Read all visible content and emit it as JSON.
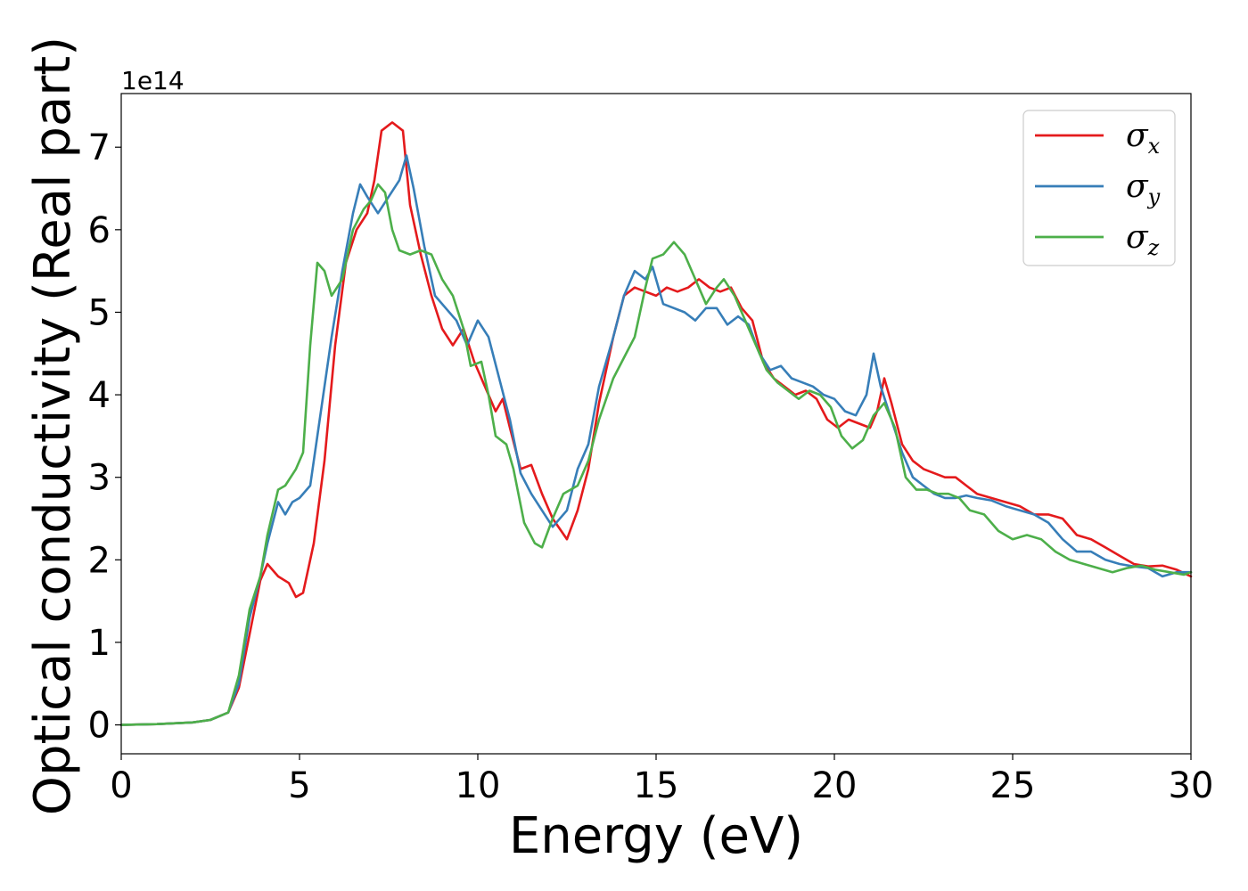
{
  "chart_data": {
    "type": "line",
    "title": "",
    "xlabel": "Energy (eV)",
    "ylabel": "Optical conductivity (Real part)",
    "y_offset_label": "1e14",
    "xlim": [
      0,
      30
    ],
    "ylim": [
      -0.35,
      7.65
    ],
    "x_ticks": [
      0,
      5,
      10,
      15,
      20,
      25,
      30
    ],
    "y_ticks": [
      0,
      1,
      2,
      3,
      4,
      5,
      6,
      7
    ],
    "grid": false,
    "legend_position": "top-right",
    "series": [
      {
        "name": "σx",
        "symbol": "σ",
        "subscript": "x",
        "color": "#e41a1c",
        "points": [
          [
            0,
            0
          ],
          [
            1,
            0.01
          ],
          [
            2,
            0.03
          ],
          [
            2.5,
            0.06
          ],
          [
            3,
            0.15
          ],
          [
            3.3,
            0.45
          ],
          [
            3.6,
            1.1
          ],
          [
            3.9,
            1.75
          ],
          [
            4.1,
            1.95
          ],
          [
            4.4,
            1.8
          ],
          [
            4.7,
            1.72
          ],
          [
            4.9,
            1.55
          ],
          [
            5.1,
            1.6
          ],
          [
            5.4,
            2.2
          ],
          [
            5.7,
            3.2
          ],
          [
            6.0,
            4.6
          ],
          [
            6.3,
            5.6
          ],
          [
            6.6,
            6.0
          ],
          [
            6.9,
            6.2
          ],
          [
            7.1,
            6.6
          ],
          [
            7.3,
            7.2
          ],
          [
            7.6,
            7.3
          ],
          [
            7.9,
            7.2
          ],
          [
            8.1,
            6.3
          ],
          [
            8.4,
            5.7
          ],
          [
            8.7,
            5.2
          ],
          [
            9.0,
            4.8
          ],
          [
            9.3,
            4.6
          ],
          [
            9.6,
            4.8
          ],
          [
            9.9,
            4.4
          ],
          [
            10.2,
            4.1
          ],
          [
            10.5,
            3.8
          ],
          [
            10.7,
            3.95
          ],
          [
            10.9,
            3.6
          ],
          [
            11.2,
            3.1
          ],
          [
            11.5,
            3.15
          ],
          [
            11.8,
            2.8
          ],
          [
            12.1,
            2.5
          ],
          [
            12.5,
            2.25
          ],
          [
            12.8,
            2.6
          ],
          [
            13.1,
            3.1
          ],
          [
            13.4,
            3.9
          ],
          [
            13.8,
            4.7
          ],
          [
            14.1,
            5.2
          ],
          [
            14.4,
            5.3
          ],
          [
            14.7,
            5.25
          ],
          [
            15.0,
            5.2
          ],
          [
            15.3,
            5.3
          ],
          [
            15.6,
            5.25
          ],
          [
            15.9,
            5.3
          ],
          [
            16.2,
            5.4
          ],
          [
            16.5,
            5.3
          ],
          [
            16.8,
            5.25
          ],
          [
            17.1,
            5.3
          ],
          [
            17.4,
            5.05
          ],
          [
            17.7,
            4.9
          ],
          [
            18.0,
            4.4
          ],
          [
            18.3,
            4.2
          ],
          [
            18.6,
            4.1
          ],
          [
            18.9,
            4.0
          ],
          [
            19.2,
            4.05
          ],
          [
            19.5,
            3.95
          ],
          [
            19.8,
            3.7
          ],
          [
            20.1,
            3.6
          ],
          [
            20.4,
            3.7
          ],
          [
            20.7,
            3.65
          ],
          [
            21.0,
            3.6
          ],
          [
            21.2,
            3.8
          ],
          [
            21.4,
            4.2
          ],
          [
            21.6,
            3.9
          ],
          [
            21.9,
            3.4
          ],
          [
            22.2,
            3.2
          ],
          [
            22.5,
            3.1
          ],
          [
            22.8,
            3.05
          ],
          [
            23.1,
            3.0
          ],
          [
            23.4,
            3.0
          ],
          [
            23.7,
            2.9
          ],
          [
            24.0,
            2.8
          ],
          [
            24.4,
            2.75
          ],
          [
            24.8,
            2.7
          ],
          [
            25.2,
            2.65
          ],
          [
            25.6,
            2.55
          ],
          [
            26.0,
            2.55
          ],
          [
            26.4,
            2.5
          ],
          [
            26.8,
            2.3
          ],
          [
            27.2,
            2.25
          ],
          [
            27.6,
            2.15
          ],
          [
            28.0,
            2.05
          ],
          [
            28.4,
            1.95
          ],
          [
            28.8,
            1.92
          ],
          [
            29.2,
            1.93
          ],
          [
            29.6,
            1.88
          ],
          [
            30.0,
            1.8
          ]
        ]
      },
      {
        "name": "σy",
        "symbol": "σ",
        "subscript": "y",
        "color": "#377eb8",
        "points": [
          [
            0,
            0
          ],
          [
            1,
            0.01
          ],
          [
            2,
            0.03
          ],
          [
            2.5,
            0.06
          ],
          [
            3,
            0.15
          ],
          [
            3.3,
            0.5
          ],
          [
            3.6,
            1.3
          ],
          [
            3.9,
            1.8
          ],
          [
            4.1,
            2.2
          ],
          [
            4.4,
            2.7
          ],
          [
            4.6,
            2.55
          ],
          [
            4.8,
            2.7
          ],
          [
            5.0,
            2.75
          ],
          [
            5.3,
            2.9
          ],
          [
            5.6,
            3.8
          ],
          [
            5.9,
            4.7
          ],
          [
            6.2,
            5.5
          ],
          [
            6.5,
            6.2
          ],
          [
            6.7,
            6.55
          ],
          [
            6.9,
            6.4
          ],
          [
            7.2,
            6.2
          ],
          [
            7.5,
            6.4
          ],
          [
            7.8,
            6.6
          ],
          [
            8.0,
            6.9
          ],
          [
            8.2,
            6.5
          ],
          [
            8.5,
            5.8
          ],
          [
            8.8,
            5.2
          ],
          [
            9.1,
            5.05
          ],
          [
            9.4,
            4.9
          ],
          [
            9.7,
            4.6
          ],
          [
            10.0,
            4.9
          ],
          [
            10.3,
            4.7
          ],
          [
            10.6,
            4.2
          ],
          [
            10.9,
            3.7
          ],
          [
            11.2,
            3.05
          ],
          [
            11.5,
            2.8
          ],
          [
            11.8,
            2.6
          ],
          [
            12.1,
            2.4
          ],
          [
            12.5,
            2.6
          ],
          [
            12.8,
            3.1
          ],
          [
            13.1,
            3.4
          ],
          [
            13.4,
            4.1
          ],
          [
            13.8,
            4.7
          ],
          [
            14.1,
            5.2
          ],
          [
            14.4,
            5.5
          ],
          [
            14.7,
            5.4
          ],
          [
            14.9,
            5.55
          ],
          [
            15.2,
            5.1
          ],
          [
            15.5,
            5.05
          ],
          [
            15.8,
            5.0
          ],
          [
            16.1,
            4.9
          ],
          [
            16.4,
            5.05
          ],
          [
            16.7,
            5.05
          ],
          [
            17.0,
            4.85
          ],
          [
            17.3,
            4.95
          ],
          [
            17.6,
            4.85
          ],
          [
            17.9,
            4.5
          ],
          [
            18.2,
            4.3
          ],
          [
            18.5,
            4.35
          ],
          [
            18.8,
            4.2
          ],
          [
            19.1,
            4.15
          ],
          [
            19.4,
            4.1
          ],
          [
            19.7,
            4.0
          ],
          [
            20.0,
            3.95
          ],
          [
            20.3,
            3.8
          ],
          [
            20.6,
            3.75
          ],
          [
            20.9,
            4.0
          ],
          [
            21.1,
            4.5
          ],
          [
            21.3,
            4.1
          ],
          [
            21.6,
            3.7
          ],
          [
            21.9,
            3.3
          ],
          [
            22.2,
            3.0
          ],
          [
            22.5,
            2.9
          ],
          [
            22.8,
            2.8
          ],
          [
            23.1,
            2.75
          ],
          [
            23.4,
            2.75
          ],
          [
            23.7,
            2.78
          ],
          [
            24.0,
            2.75
          ],
          [
            24.4,
            2.72
          ],
          [
            24.8,
            2.65
          ],
          [
            25.2,
            2.6
          ],
          [
            25.6,
            2.55
          ],
          [
            26.0,
            2.45
          ],
          [
            26.4,
            2.25
          ],
          [
            26.8,
            2.1
          ],
          [
            27.2,
            2.1
          ],
          [
            27.6,
            2.0
          ],
          [
            28.0,
            1.95
          ],
          [
            28.4,
            1.92
          ],
          [
            28.8,
            1.9
          ],
          [
            29.2,
            1.8
          ],
          [
            29.6,
            1.85
          ],
          [
            30.0,
            1.85
          ]
        ]
      },
      {
        "name": "σz",
        "symbol": "σ",
        "subscript": "z",
        "color": "#4daf4a",
        "points": [
          [
            0,
            0
          ],
          [
            1,
            0.01
          ],
          [
            2,
            0.03
          ],
          [
            2.5,
            0.06
          ],
          [
            3,
            0.15
          ],
          [
            3.3,
            0.6
          ],
          [
            3.6,
            1.4
          ],
          [
            3.9,
            1.8
          ],
          [
            4.1,
            2.3
          ],
          [
            4.4,
            2.85
          ],
          [
            4.6,
            2.9
          ],
          [
            4.9,
            3.1
          ],
          [
            5.1,
            3.3
          ],
          [
            5.3,
            4.6
          ],
          [
            5.5,
            5.6
          ],
          [
            5.7,
            5.5
          ],
          [
            5.9,
            5.2
          ],
          [
            6.2,
            5.4
          ],
          [
            6.5,
            6.0
          ],
          [
            6.8,
            6.25
          ],
          [
            7.0,
            6.35
          ],
          [
            7.2,
            6.55
          ],
          [
            7.4,
            6.45
          ],
          [
            7.6,
            6.0
          ],
          [
            7.8,
            5.75
          ],
          [
            8.1,
            5.7
          ],
          [
            8.4,
            5.75
          ],
          [
            8.7,
            5.7
          ],
          [
            9.0,
            5.4
          ],
          [
            9.3,
            5.2
          ],
          [
            9.6,
            4.8
          ],
          [
            9.8,
            4.35
          ],
          [
            10.1,
            4.4
          ],
          [
            10.3,
            4.0
          ],
          [
            10.5,
            3.5
          ],
          [
            10.8,
            3.4
          ],
          [
            11.0,
            3.1
          ],
          [
            11.3,
            2.45
          ],
          [
            11.6,
            2.2
          ],
          [
            11.8,
            2.15
          ],
          [
            12.1,
            2.5
          ],
          [
            12.4,
            2.8
          ],
          [
            12.8,
            2.9
          ],
          [
            13.1,
            3.2
          ],
          [
            13.4,
            3.7
          ],
          [
            13.8,
            4.2
          ],
          [
            14.1,
            4.45
          ],
          [
            14.4,
            4.7
          ],
          [
            14.7,
            5.3
          ],
          [
            14.9,
            5.65
          ],
          [
            15.2,
            5.7
          ],
          [
            15.5,
            5.85
          ],
          [
            15.8,
            5.7
          ],
          [
            16.1,
            5.4
          ],
          [
            16.4,
            5.1
          ],
          [
            16.7,
            5.3
          ],
          [
            16.9,
            5.4
          ],
          [
            17.2,
            5.2
          ],
          [
            17.5,
            4.9
          ],
          [
            17.8,
            4.6
          ],
          [
            18.1,
            4.3
          ],
          [
            18.4,
            4.15
          ],
          [
            18.7,
            4.05
          ],
          [
            19.0,
            3.95
          ],
          [
            19.3,
            4.05
          ],
          [
            19.6,
            4.0
          ],
          [
            19.9,
            3.85
          ],
          [
            20.2,
            3.5
          ],
          [
            20.5,
            3.35
          ],
          [
            20.8,
            3.45
          ],
          [
            21.1,
            3.75
          ],
          [
            21.4,
            3.9
          ],
          [
            21.7,
            3.6
          ],
          [
            22.0,
            3.0
          ],
          [
            22.3,
            2.85
          ],
          [
            22.6,
            2.85
          ],
          [
            22.9,
            2.8
          ],
          [
            23.2,
            2.8
          ],
          [
            23.5,
            2.75
          ],
          [
            23.8,
            2.6
          ],
          [
            24.2,
            2.55
          ],
          [
            24.6,
            2.35
          ],
          [
            25.0,
            2.25
          ],
          [
            25.4,
            2.3
          ],
          [
            25.8,
            2.25
          ],
          [
            26.2,
            2.1
          ],
          [
            26.6,
            2.0
          ],
          [
            27.0,
            1.95
          ],
          [
            27.4,
            1.9
          ],
          [
            27.8,
            1.85
          ],
          [
            28.2,
            1.9
          ],
          [
            28.6,
            1.93
          ],
          [
            29.0,
            1.88
          ],
          [
            29.4,
            1.85
          ],
          [
            29.8,
            1.82
          ],
          [
            30.0,
            1.85
          ]
        ]
      }
    ]
  }
}
